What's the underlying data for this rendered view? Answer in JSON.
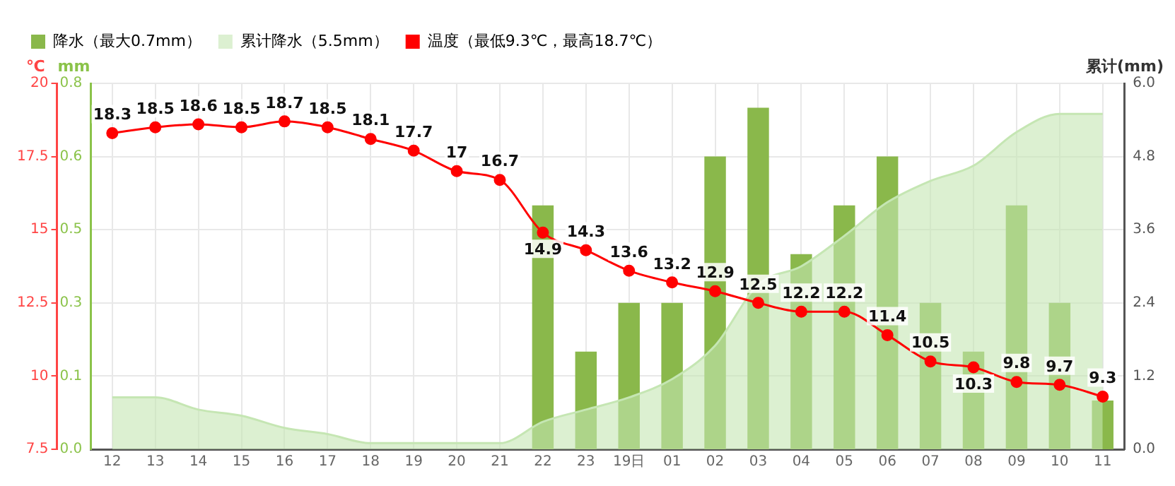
{
  "chart_data": {
    "type": "bar",
    "ylabel": "℃",
    "y2label": "mm",
    "y3label": "累计(mm)",
    "categories": [
      "12",
      "13",
      "14",
      "15",
      "16",
      "17",
      "18",
      "19",
      "20",
      "21",
      "22",
      "23",
      "19日",
      "01",
      "02",
      "03",
      "04",
      "05",
      "06",
      "07",
      "08",
      "09",
      "10",
      "11"
    ],
    "series": [
      {
        "name": "降水（最大0.7mm）",
        "axis": "y2",
        "color": "#8ab84b",
        "values": [
          0,
          0,
          0,
          0,
          0,
          0,
          0,
          0,
          0,
          0,
          0.5,
          0.2,
          0.3,
          0.3,
          0.6,
          0.7,
          0.4,
          0.5,
          0.6,
          0.3,
          0.2,
          0.5,
          0.3,
          0.1
        ]
      },
      {
        "name": "累计降水（5.5mm）",
        "type": "area",
        "axis": "y3",
        "color": "#c5e6b3",
        "values": [
          0.85,
          0.85,
          0.65,
          0.55,
          0.35,
          0.25,
          0.1,
          0.1,
          0.1,
          0.1,
          0.45,
          0.65,
          0.85,
          1.15,
          1.7,
          2.7,
          3.0,
          3.5,
          4.05,
          4.4,
          4.65,
          5.2,
          5.5,
          5.5
        ]
      },
      {
        "name": "温度（最低9.3℃，最高18.7℃）",
        "type": "line",
        "axis": "y",
        "color": "#ff0000",
        "marker": "circle",
        "values": [
          18.3,
          18.5,
          18.6,
          18.5,
          18.7,
          18.5,
          18.1,
          17.7,
          17,
          16.7,
          14.9,
          14.3,
          13.6,
          13.2,
          12.9,
          12.5,
          12.2,
          12.2,
          11.4,
          10.5,
          10.3,
          9.8,
          9.7,
          9.3
        ],
        "value_labels": [
          "18.3",
          "18.5",
          "18.6",
          "18.5",
          "18.7",
          "18.5",
          "18.1",
          "17.7",
          "17",
          "16.7",
          "14.9",
          "14.3",
          "13.6",
          "13.2",
          "12.9",
          "12.5",
          "12.2",
          "12.2",
          "11.4",
          "10.5",
          "10.3",
          "9.8",
          "9.7",
          "9.3"
        ]
      }
    ],
    "ylim": [
      7.5,
      20
    ],
    "yticks": [
      7.5,
      10,
      12.5,
      15,
      17.5,
      20
    ],
    "y2lim": [
      0,
      0.75
    ],
    "y2ticks": [
      {
        "value": 0,
        "label": "0.0"
      },
      {
        "value": 0.15,
        "label": "0.1"
      },
      {
        "value": 0.3,
        "label": "0.3"
      },
      {
        "value": 0.45,
        "label": "0.5"
      },
      {
        "value": 0.6,
        "label": "0.6"
      },
      {
        "value": 0.75,
        "label": "0.8"
      }
    ],
    "y3lim": [
      0,
      6
    ],
    "y3ticks": [
      {
        "value": 0,
        "label": "0.0"
      },
      {
        "value": 1.2,
        "label": "1.2"
      },
      {
        "value": 2.4,
        "label": "2.4"
      },
      {
        "value": 3.6,
        "label": "3.6"
      },
      {
        "value": 4.8,
        "label": "4.8"
      },
      {
        "value": 6,
        "label": "6.0"
      }
    ],
    "grid": true,
    "legend": "top left"
  }
}
